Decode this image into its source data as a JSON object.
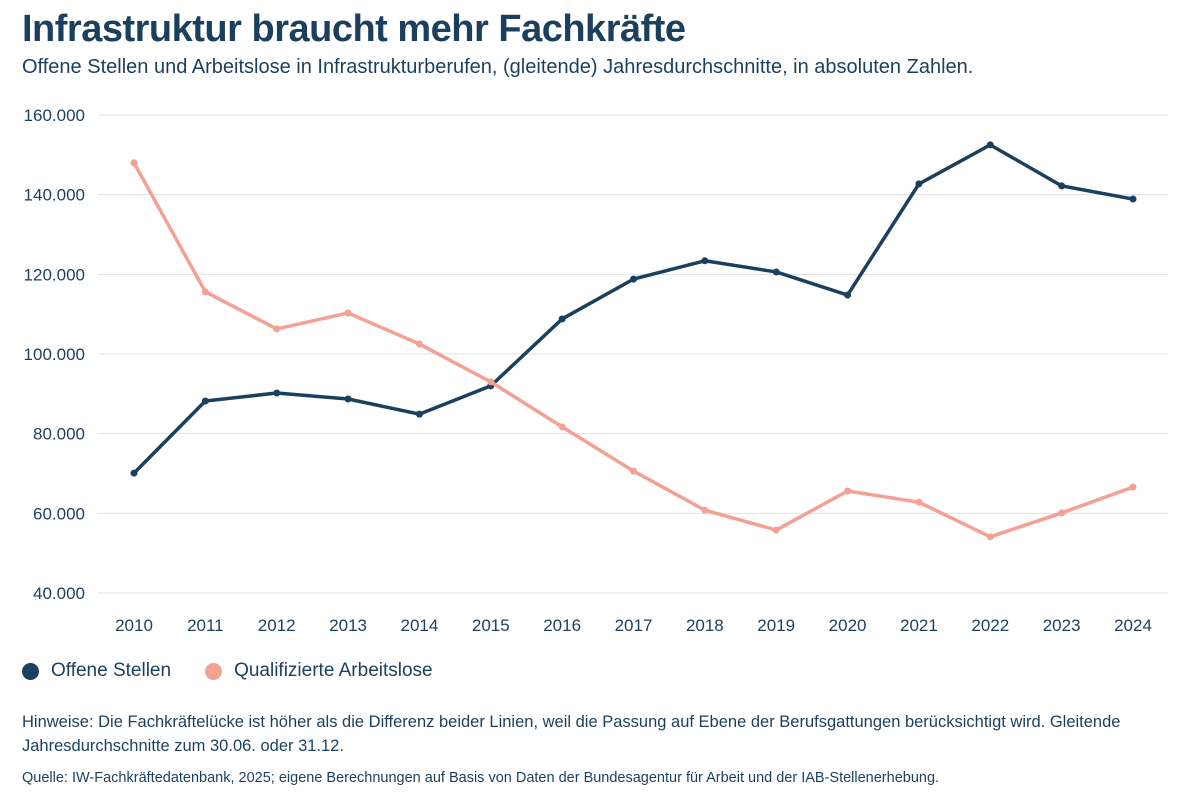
{
  "title": "Infrastruktur braucht mehr Fachkräfte",
  "subtitle": "Offene Stellen und Arbeitslose in Infrastrukturberufen, (gleitende) Jahresdurchschnitte, in absoluten Zahlen.",
  "note": "Hinweise: Die Fachkräftelücke ist höher als die Differenz beider Linien, weil die Passung auf Ebene der Berufsgattungen berücksichtigt wird. Gleitende Jahresdurchschnitte zum 30.06. oder 31.12.",
  "source": "Quelle: IW-Fachkräftedatenbank, 2025; eigene Berechnungen auf Basis von Daten der Bundesagentur für Arbeit und der IAB-Stellenerhebung.",
  "chart_data": {
    "type": "line",
    "categories": [
      "2010",
      "2011",
      "2012",
      "2013",
      "2014",
      "2015",
      "2016",
      "2017",
      "2018",
      "2019",
      "2020",
      "2021",
      "2022",
      "2023",
      "2024"
    ],
    "ylim": [
      40000,
      160000
    ],
    "yticks": [
      40000,
      60000,
      80000,
      100000,
      120000,
      140000,
      160000
    ],
    "ytick_labels": [
      "40.000",
      "60.000",
      "80.000",
      "100.000",
      "120.000",
      "140.000",
      "160.000"
    ],
    "grid": true,
    "legend": "bottom-left",
    "series": [
      {
        "name": "Offene Stellen",
        "color": "#1b3f5e",
        "values": [
          70100,
          88200,
          90200,
          88700,
          84900,
          92000,
          108800,
          118800,
          123400,
          120600,
          114800,
          142700,
          152500,
          142200,
          138900
        ]
      },
      {
        "name": "Qualifizierte Arbeitslose",
        "color": "#f4a193",
        "values": [
          148000,
          115600,
          106300,
          110300,
          102500,
          93000,
          81700,
          70600,
          60800,
          55800,
          65600,
          62800,
          54100,
          60100,
          66600
        ]
      }
    ]
  }
}
